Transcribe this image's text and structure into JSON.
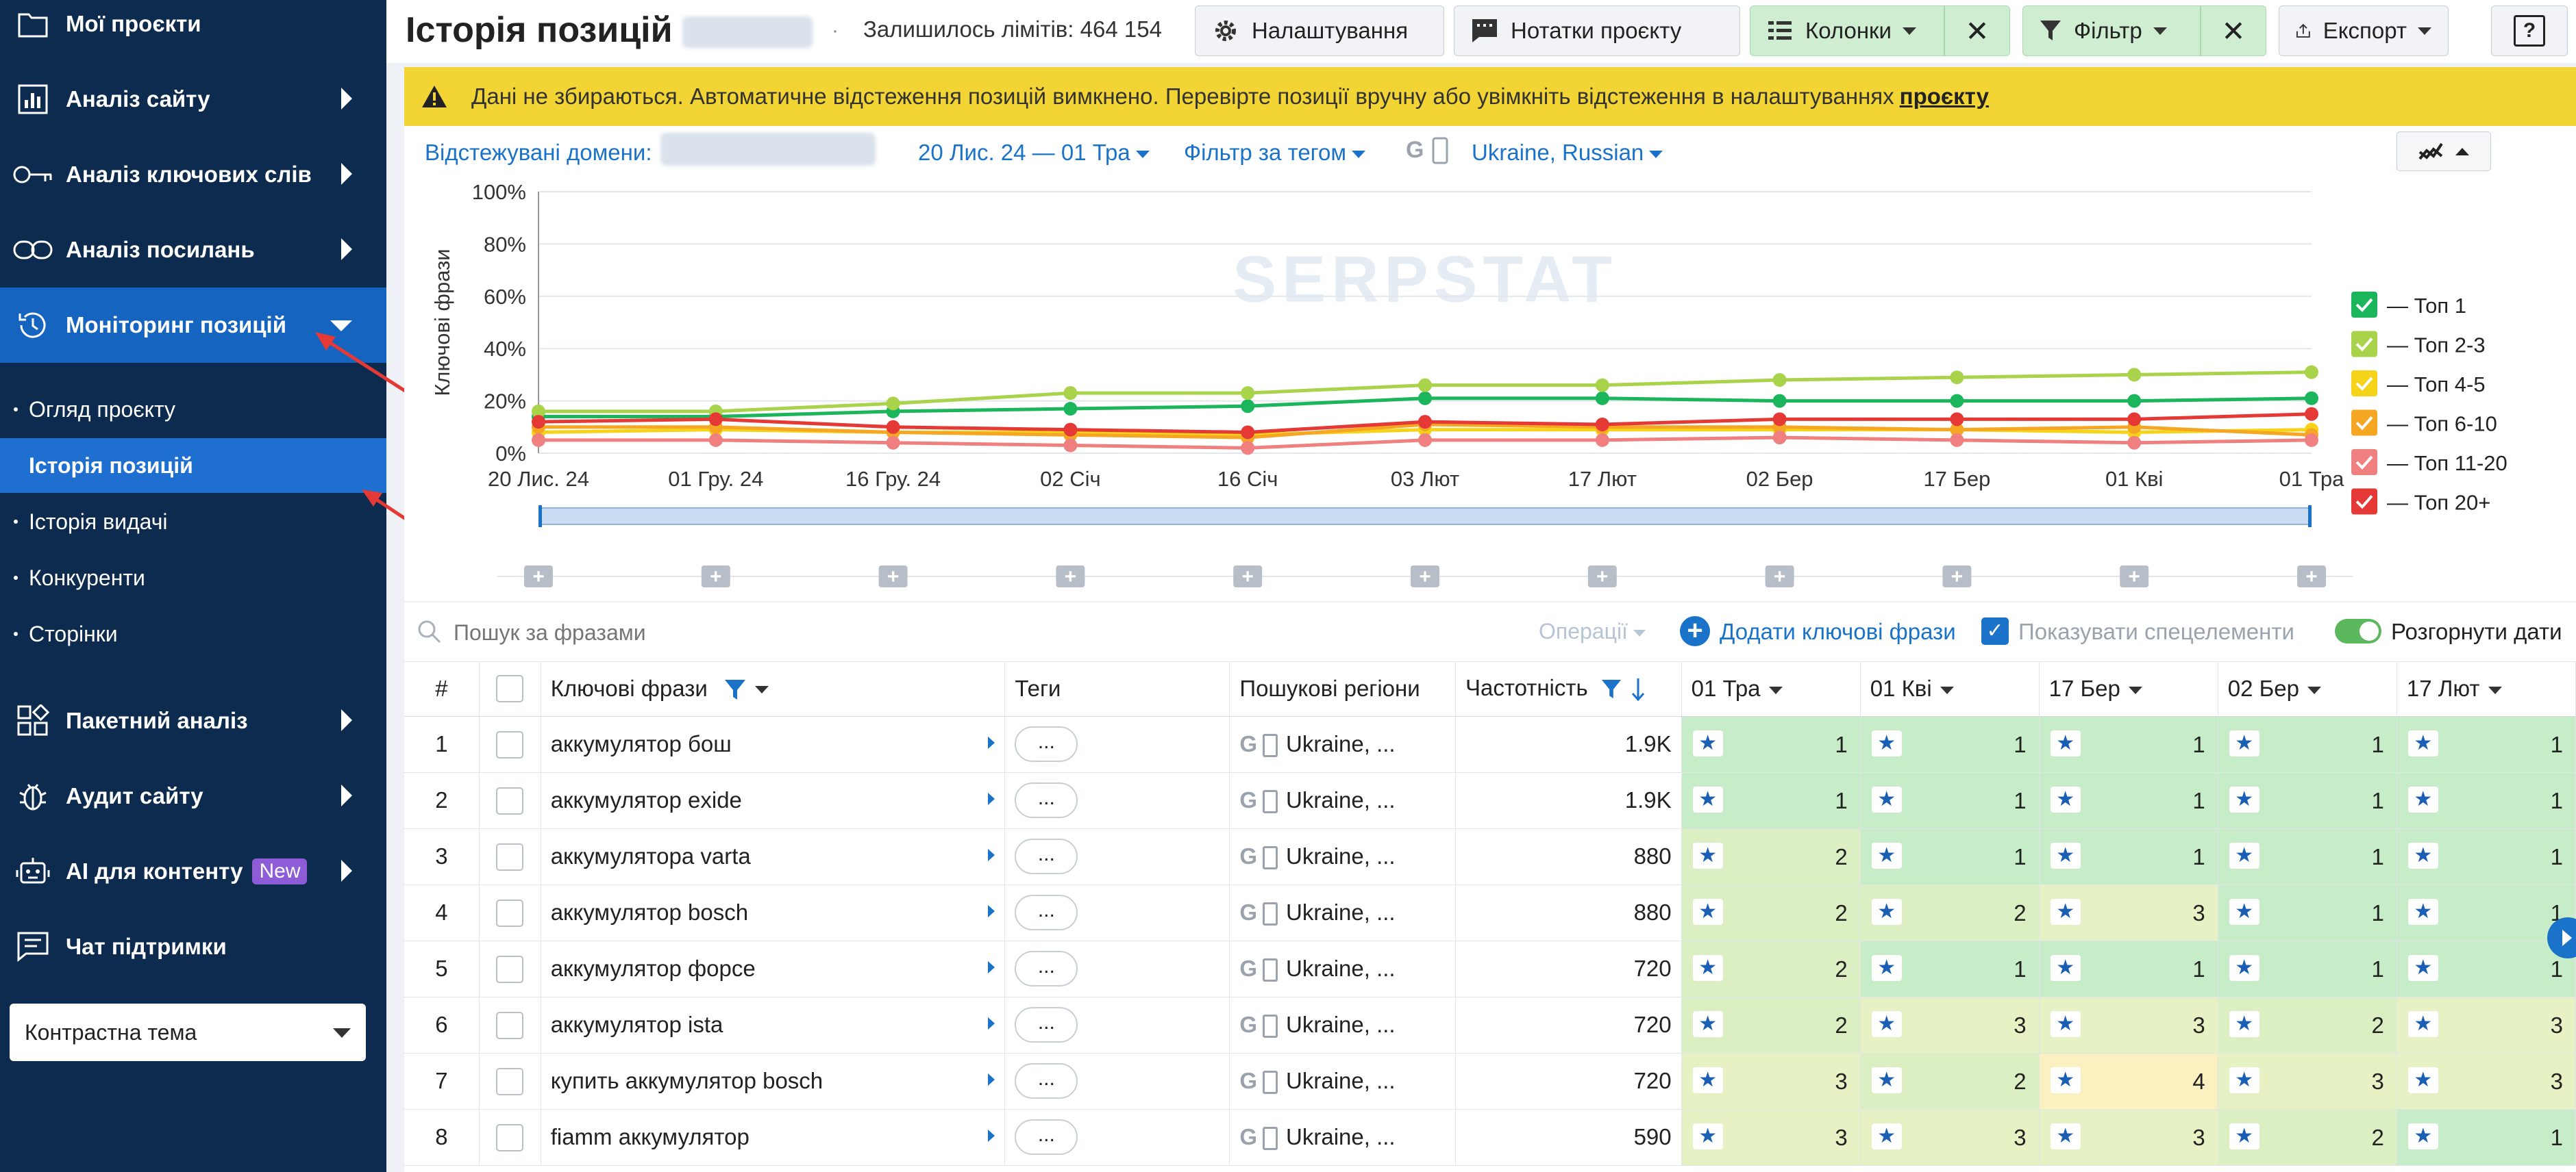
{
  "sidebar": {
    "items": [
      {
        "label": "Мої проєкти",
        "icon": "folder-icon",
        "has_arrow": false
      },
      {
        "label": "Аналіз сайту",
        "icon": "bar-chart-icon",
        "has_arrow": true
      },
      {
        "label": "Аналіз ключових слів",
        "icon": "key-icon",
        "has_arrow": true
      },
      {
        "label": "Аналіз посилань",
        "icon": "link-icon",
        "has_arrow": true
      },
      {
        "label": "Моніторинг позицій",
        "icon": "history-icon",
        "has_arrow": true,
        "active": true
      }
    ],
    "sub_items": [
      {
        "label": "Огляд проєкту"
      },
      {
        "label": "Історія позицій",
        "selected": true
      },
      {
        "label": "Історія видачі"
      },
      {
        "label": "Конкуренти"
      },
      {
        "label": "Сторінки"
      }
    ],
    "items2": [
      {
        "label": "Пакетний аналіз",
        "icon": "grid-icon",
        "has_arrow": true
      },
      {
        "label": "Аудит сайту",
        "icon": "bug-icon",
        "has_arrow": true
      },
      {
        "label": "AI для контенту",
        "icon": "robot-icon",
        "has_arrow": true,
        "badge": "New"
      },
      {
        "label": "Чат підтримки",
        "icon": "chat-icon",
        "has_arrow": false
      }
    ],
    "theme_select": "Контрастна тема"
  },
  "topbar": {
    "title": "Історія позицій",
    "limits": "Залишилось лімітів: 464 154",
    "settings": "Налаштування",
    "notes": "Нотатки проєкту",
    "columns": "Колонки",
    "filter": "Фільтр",
    "export": "Експорт",
    "help": "?"
  },
  "warning": {
    "text": "Дані не збираються. Автоматичне відстеження позицій вимкнено. Перевірте позиції вручну або увімкніть відстеження в налаштуваннях",
    "link": "проєкту"
  },
  "filters": {
    "domains_label": "Відстежувані домени:",
    "date_range": "20 Лис. 24 — 01 Тра",
    "tag_filter": "Фільтр за тегом",
    "region": "Ukraine, Russian"
  },
  "chart_data": {
    "type": "line",
    "ylabel": "Ключові фрази",
    "x": [
      "20 Лис. 24",
      "01 Гру. 24",
      "16 Гру. 24",
      "02 Січ",
      "16 Січ",
      "03 Лют",
      "17 Лют",
      "02 Бер",
      "17 Бер",
      "01 Кві",
      "01 Тра"
    ],
    "yticks": [
      "0%",
      "20%",
      "40%",
      "60%",
      "80%",
      "100%"
    ],
    "ylim": [
      0,
      100
    ],
    "legend_position": "right",
    "watermark": "SERPSTAT",
    "series": [
      {
        "name": "— Топ 1",
        "color": "#1bb55c",
        "values": [
          14,
          14,
          16,
          17,
          18,
          21,
          21,
          20,
          20,
          20,
          21
        ]
      },
      {
        "name": "— Топ 2-3",
        "color": "#a8d34a",
        "values": [
          16,
          16,
          19,
          23,
          23,
          26,
          26,
          28,
          29,
          30,
          31
        ]
      },
      {
        "name": "— Топ 4-5",
        "color": "#f5d318",
        "values": [
          8,
          9,
          8,
          8,
          7,
          9,
          9,
          9,
          9,
          8,
          9
        ]
      },
      {
        "name": "— Топ 6-10",
        "color": "#f5a623",
        "values": [
          10,
          10,
          8,
          7,
          6,
          11,
          10,
          10,
          9,
          10,
          7
        ]
      },
      {
        "name": "— Топ 11-20",
        "color": "#f08080",
        "values": [
          5,
          5,
          4,
          3,
          2,
          5,
          5,
          6,
          5,
          4,
          5
        ]
      },
      {
        "name": "— Топ 20+",
        "color": "#e53935",
        "values": [
          12,
          13,
          10,
          9,
          8,
          12,
          11,
          13,
          13,
          13,
          15
        ]
      }
    ]
  },
  "table": {
    "search_placeholder": "Пошук за фразами",
    "operations": "Операції",
    "add_keywords": "Додати ключові фрази",
    "show_special": "Показувати спецелементи",
    "expand_dates": "Розгорнути дати",
    "headers": {
      "num": "#",
      "keyword": "Ключові фрази",
      "tags": "Теги",
      "regions": "Пошукові регіони",
      "volume": "Частотність"
    },
    "date_headers": [
      "01 Тра",
      "01 Кві",
      "17 Бер",
      "02 Бер",
      "17 Лют"
    ],
    "rows": [
      {
        "num": "1",
        "keyword": "аккумулятор бош",
        "tags": "...",
        "region": "Ukraine, ...",
        "volume": "1.9K",
        "positions": [
          "1",
          "1",
          "1",
          "1",
          "1"
        ]
      },
      {
        "num": "2",
        "keyword": "аккумулятор exide",
        "tags": "...",
        "region": "Ukraine, ...",
        "volume": "1.9K",
        "positions": [
          "1",
          "1",
          "1",
          "1",
          "1"
        ]
      },
      {
        "num": "3",
        "keyword": "аккумулятора varta",
        "tags": "...",
        "region": "Ukraine, ...",
        "volume": "880",
        "positions": [
          "2",
          "1",
          "1",
          "1",
          "1"
        ]
      },
      {
        "num": "4",
        "keyword": "аккумулятор bosch",
        "tags": "...",
        "region": "Ukraine, ...",
        "volume": "880",
        "positions": [
          "2",
          "2",
          "3",
          "1",
          "1"
        ]
      },
      {
        "num": "5",
        "keyword": "аккумулятор форсе",
        "tags": "...",
        "region": "Ukraine, ...",
        "volume": "720",
        "positions": [
          "2",
          "1",
          "1",
          "1",
          "1"
        ]
      },
      {
        "num": "6",
        "keyword": "аккумулятор ista",
        "tags": "...",
        "region": "Ukraine, ...",
        "volume": "720",
        "positions": [
          "2",
          "3",
          "3",
          "2",
          "3"
        ]
      },
      {
        "num": "7",
        "keyword": "купить аккумулятор bosch",
        "tags": "...",
        "region": "Ukraine, ...",
        "volume": "720",
        "positions": [
          "3",
          "2",
          "4",
          "3",
          "3"
        ]
      },
      {
        "num": "8",
        "keyword": "fiamm аккумулятор",
        "tags": "...",
        "region": "Ukraine, ...",
        "volume": "590",
        "positions": [
          "3",
          "3",
          "3",
          "2",
          "1"
        ]
      }
    ],
    "pos_colors": {
      "1": "#c6ecc8",
      "2": "#dcefc2",
      "3": "#e6f1c4",
      "4": "#fbf1c0"
    }
  }
}
